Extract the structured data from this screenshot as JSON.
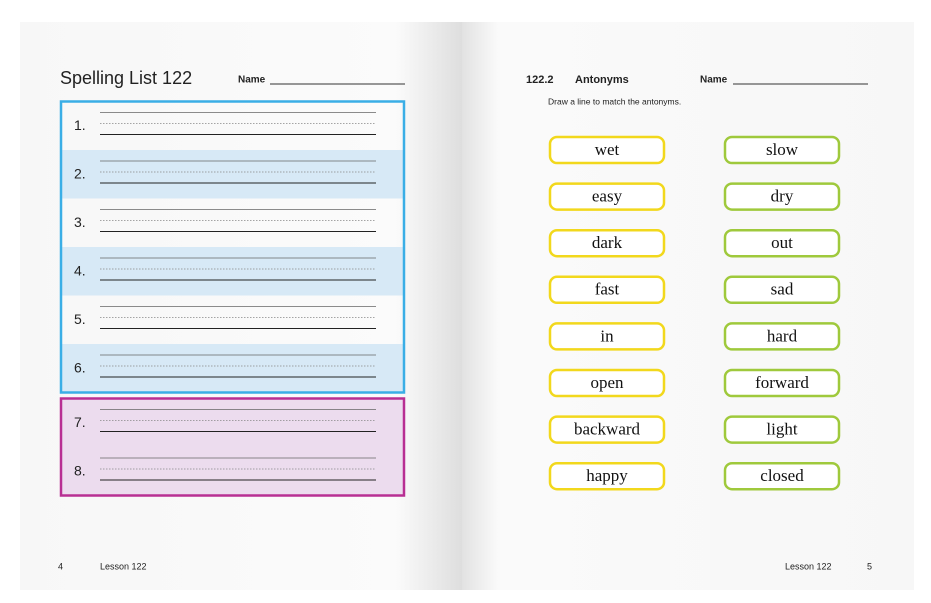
{
  "left_page": {
    "title": "Spelling List 122",
    "name_label": "Name",
    "blue_box_rows": [
      "1.",
      "2.",
      "3.",
      "4.",
      "5.",
      "6."
    ],
    "pink_box_rows": [
      "7.",
      "8."
    ],
    "page_number": "4",
    "footer": "Lesson 122"
  },
  "right_page": {
    "section": "122.2",
    "heading": "Antonyms",
    "name_label": "Name",
    "instruction": "Draw a line to match the antonyms.",
    "left_words": [
      "wet",
      "easy",
      "dark",
      "fast",
      "in",
      "open",
      "backward",
      "happy"
    ],
    "right_words": [
      "slow",
      "dry",
      "out",
      "sad",
      "hard",
      "forward",
      "light",
      "closed"
    ],
    "footer": "Lesson 122",
    "page_number": "5"
  }
}
